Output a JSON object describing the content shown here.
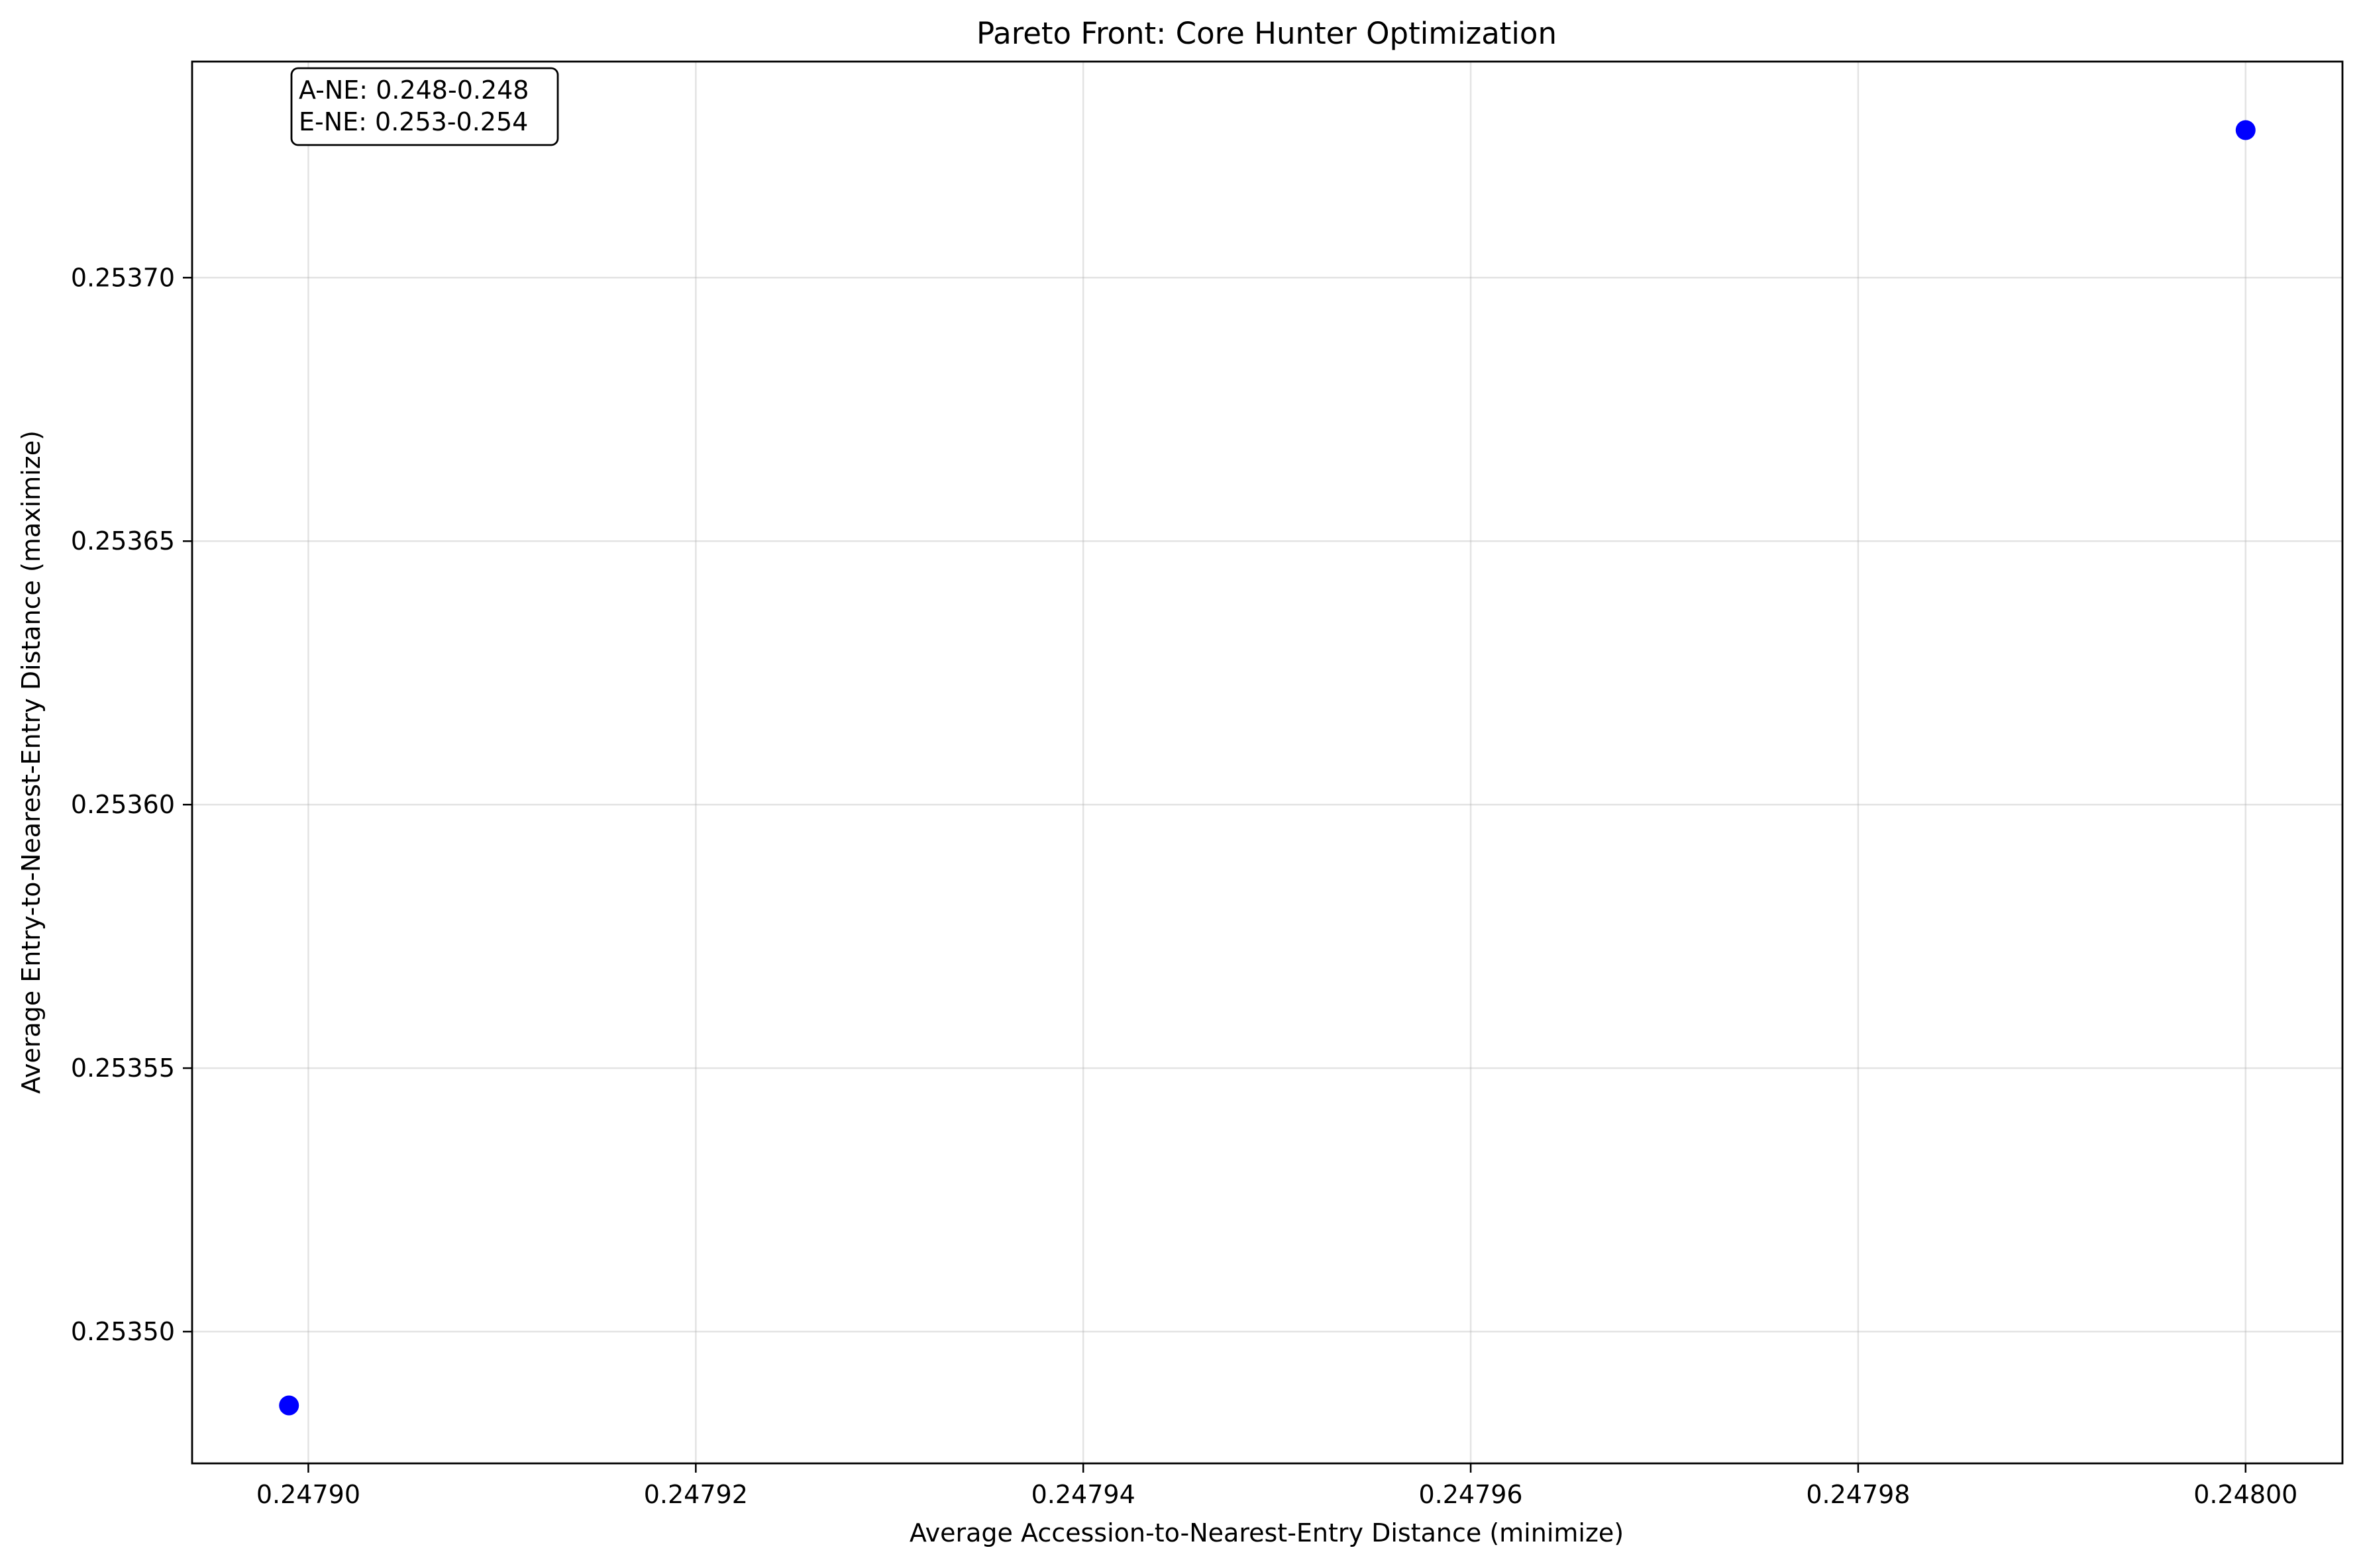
{
  "chart_data": {
    "type": "scatter",
    "title": "Pareto Front: Core Hunter Optimization",
    "xlabel": "Average Accession-to-Nearest-Entry Distance (minimize)",
    "ylabel": "Average Entry-to-Nearest-Entry Distance (maximize)",
    "xlim": [
      0.247894,
      0.248005
    ],
    "ylim": [
      0.253475,
      0.253741
    ],
    "grid": true,
    "x_ticks": [
      0.2479,
      0.24792,
      0.24794,
      0.24796,
      0.24798,
      0.248
    ],
    "x_tick_labels": [
      "0.24790",
      "0.24792",
      "0.24794",
      "0.24796",
      "0.24798",
      "0.24800"
    ],
    "y_ticks": [
      0.2535,
      0.25355,
      0.2536,
      0.25365,
      0.2537
    ],
    "y_tick_labels": [
      "0.25350",
      "0.25355",
      "0.25360",
      "0.25365",
      "0.25370"
    ],
    "points": [
      {
        "x": 0.247899,
        "y": 0.253486
      },
      {
        "x": 0.248,
        "y": 0.253728
      }
    ],
    "marker_color": "#0000ff",
    "annotation": {
      "lines": [
        "A-NE: 0.248-0.248",
        "E-NE: 0.253-0.254"
      ],
      "location": "top-left"
    }
  }
}
